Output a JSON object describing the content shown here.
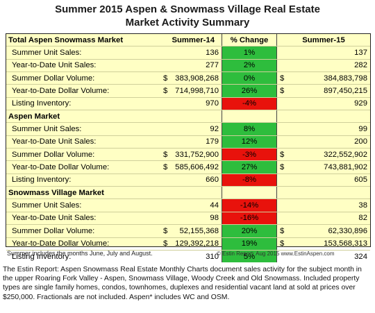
{
  "title": {
    "line1": "Summer 2015 Aspen & Snowmass Village Real Estate",
    "line2": "Market Activity Summary"
  },
  "columns": {
    "change": "% Change",
    "s14": "Summer-14",
    "s15": "Summer-15"
  },
  "colors": {
    "background_table": "#ffffc4",
    "positive": "#2ebd3d",
    "negative": "#e8120c"
  },
  "chart_data": {
    "type": "table",
    "title": "Summer 2015 Aspen & Snowmass Village Real Estate Market Activity Summary",
    "columns": [
      "",
      "Summer-14",
      "% Change",
      "Summer-15"
    ],
    "sections": [
      {
        "name": "Total Aspen Snowmass Market",
        "rows": [
          {
            "label": "Summer Unit Sales:",
            "s14_currency": "",
            "s14": "136",
            "change": "1%",
            "sign": "pos",
            "s15_currency": "",
            "s15": "137"
          },
          {
            "label": "Year-to-Date Unit Sales:",
            "s14_currency": "",
            "s14": "277",
            "change": "2%",
            "sign": "pos",
            "s15_currency": "",
            "s15": "282"
          },
          {
            "label": "Summer Dollar Volume:",
            "s14_currency": "$",
            "s14": "383,908,268",
            "change": "0%",
            "sign": "pos",
            "s15_currency": "$",
            "s15": "384,883,798"
          },
          {
            "label": "Year-to-Date Dollar Volume:",
            "s14_currency": "$",
            "s14": "714,998,710",
            "change": "26%",
            "sign": "pos",
            "s15_currency": "$",
            "s15": "897,450,215"
          },
          {
            "label": "Listing Inventory:",
            "s14_currency": "",
            "s14": "970",
            "change": "-4%",
            "sign": "neg",
            "s15_currency": "",
            "s15": "929"
          }
        ]
      },
      {
        "name": "Aspen Market",
        "rows": [
          {
            "label": "Summer Unit Sales:",
            "s14_currency": "",
            "s14": "92",
            "change": "8%",
            "sign": "pos",
            "s15_currency": "",
            "s15": "99"
          },
          {
            "label": "Year-to-Date Unit Sales:",
            "s14_currency": "",
            "s14": "179",
            "change": "12%",
            "sign": "pos",
            "s15_currency": "",
            "s15": "200"
          },
          {
            "label": "Summer Dollar Volume:",
            "s14_currency": "$",
            "s14": "331,752,900",
            "change": "-3%",
            "sign": "neg",
            "s15_currency": "$",
            "s15": "322,552,902"
          },
          {
            "label": "Year-to-Date Dollar Volume:",
            "s14_currency": "$",
            "s14": "585,606,492",
            "change": "27%",
            "sign": "pos",
            "s15_currency": "$",
            "s15": "743,881,902"
          },
          {
            "label": "Listing Inventory:",
            "s14_currency": "",
            "s14": "660",
            "change": "-8%",
            "sign": "neg",
            "s15_currency": "",
            "s15": "605"
          }
        ]
      },
      {
        "name": "Snowmass Village Market",
        "rows": [
          {
            "label": "Summer Unit Sales:",
            "s14_currency": "",
            "s14": "44",
            "change": "-14%",
            "sign": "neg",
            "s15_currency": "",
            "s15": "38"
          },
          {
            "label": "Year-to-Date Unit Sales:",
            "s14_currency": "",
            "s14": "98",
            "change": "-16%",
            "sign": "neg",
            "s15_currency": "",
            "s15": "82"
          },
          {
            "label": "Summer Dollar Volume:",
            "s14_currency": "$",
            "s14": "52,155,368",
            "change": "20%",
            "sign": "pos",
            "s15_currency": "$",
            "s15": "62,330,896"
          },
          {
            "label": "Year-to-Date Dollar Volume:",
            "s14_currency": "$",
            "s14": "129,392,218",
            "change": "19%",
            "sign": "pos",
            "s15_currency": "$",
            "s15": "153,568,313"
          },
          {
            "label": "Listing Inventory:",
            "s14_currency": "",
            "s14": "310",
            "change": "5%",
            "sign": "pos",
            "s15_currency": "",
            "s15": "324"
          }
        ]
      }
    ]
  },
  "footnote": "Summer includes the months June, July and August.",
  "credit": "© Estin Report: Aug 2015 www.EstinAspen.com",
  "description": "The Estin Report: Aspen Snowmass Real Estate Monthly Charts document sales activity for the subject month in the upper Roaring Fork Valley - Aspen, Snowmass Village, Woody Creek and Old Snowmass. Included property types are single family homes, condos, townhomes, duplexes and residential vacant land at sold at prices over $250,000. Fractionals are not included. Aspen* includes WC and OSM."
}
